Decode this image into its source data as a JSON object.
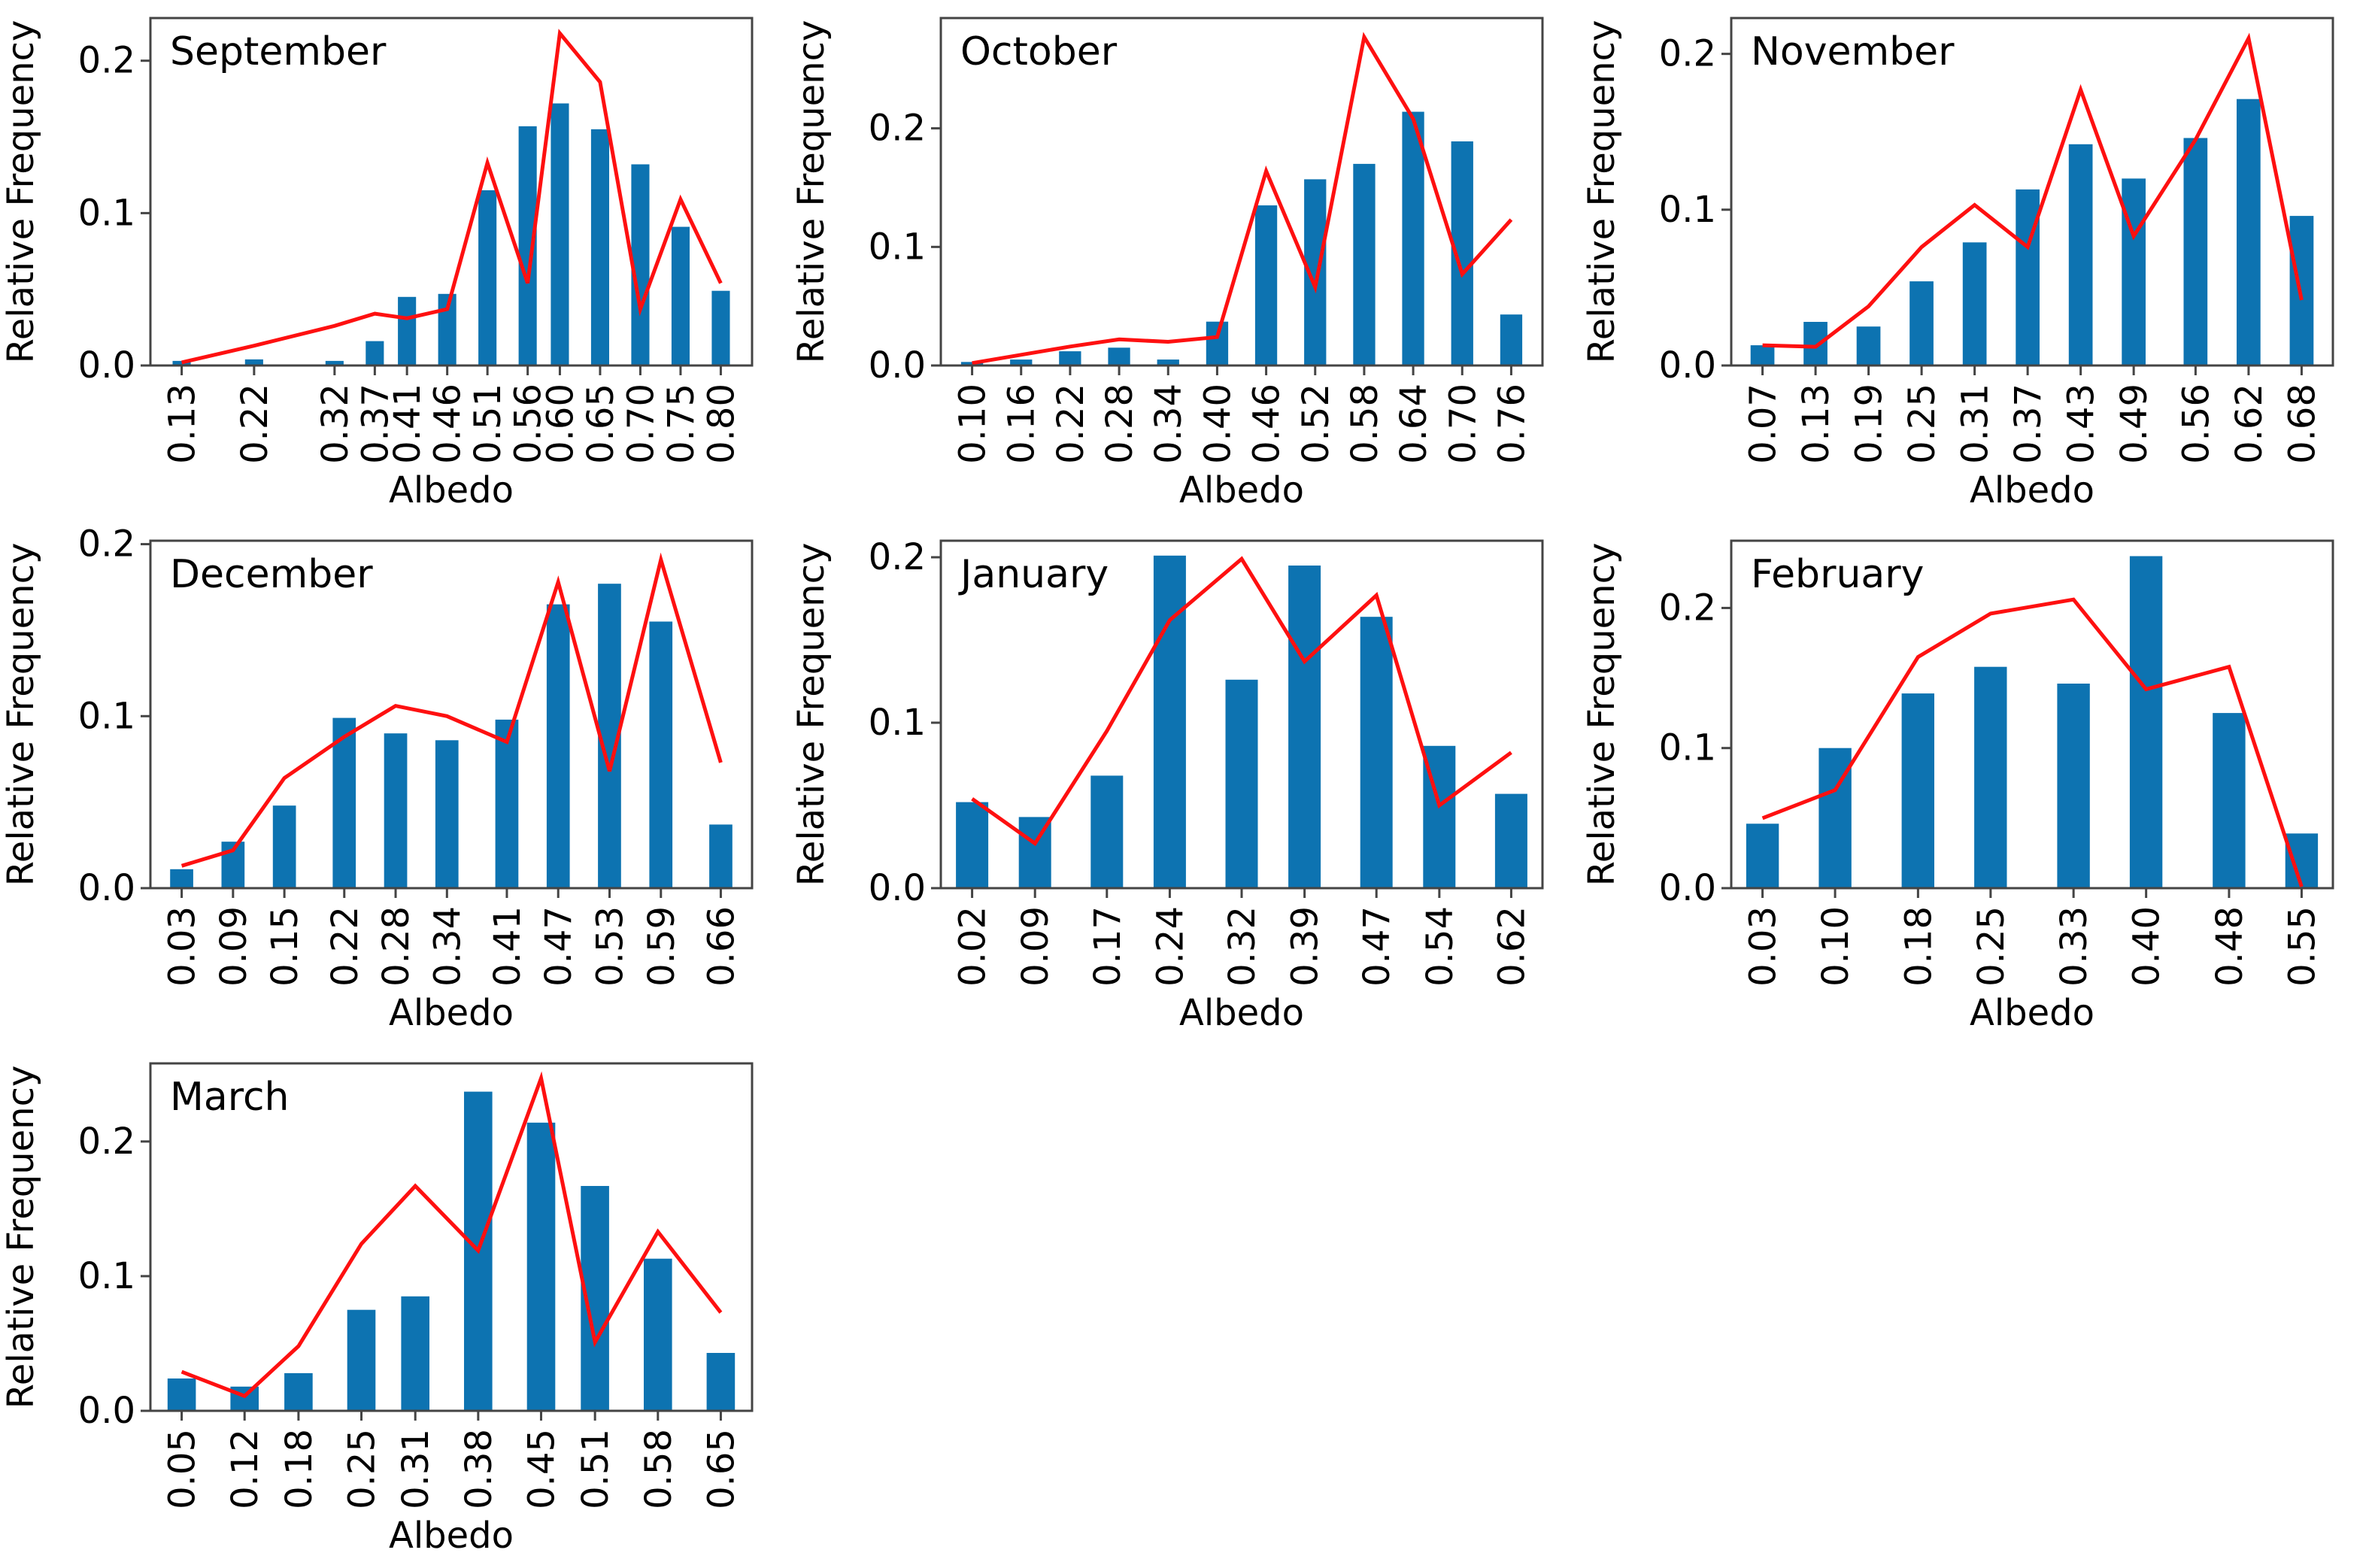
{
  "figure": {
    "ylabel": "Relative Frequency",
    "xlabel": "Albedo",
    "background_color": "#ffffff",
    "bar_color": "#0d73b1",
    "line_color": "#fe1010",
    "axis_color": "#444444",
    "text_color": "#000000",
    "ytick_labels": [
      "0.0",
      "0.1",
      "0.2"
    ]
  },
  "chart_data": [
    {
      "type": "bar",
      "title": "September",
      "xlabel": "Albedo",
      "ylabel": "Relative Frequency",
      "categories": [
        "0.13",
        "0.22",
        "0.32",
        "0.37",
        "0.41",
        "0.46",
        "0.51",
        "0.56",
        "0.60",
        "0.65",
        "0.70",
        "0.75",
        "0.80"
      ],
      "series": [
        {
          "name": "relative-frequency-histogram",
          "kind": "bar",
          "values": [
            0.003,
            0.004,
            0.003,
            0.016,
            0.045,
            0.047,
            0.115,
            0.157,
            0.172,
            0.155,
            0.132,
            0.091,
            0.049
          ]
        },
        {
          "name": "fitted-distribution-line",
          "kind": "line",
          "values": [
            0.002,
            0.013,
            0.026,
            0.034,
            0.031,
            0.037,
            0.133,
            0.054,
            0.218,
            0.186,
            0.037,
            0.109,
            0.054
          ]
        }
      ],
      "ylim": [
        0,
        0.228
      ],
      "yticks": [
        0.0,
        0.1,
        0.2
      ],
      "grid": false,
      "legend": "none"
    },
    {
      "type": "bar",
      "title": "October",
      "xlabel": "Albedo",
      "ylabel": "Relative Frequency",
      "categories": [
        "0.10",
        "0.16",
        "0.22",
        "0.28",
        "0.34",
        "0.40",
        "0.46",
        "0.52",
        "0.58",
        "0.64",
        "0.70",
        "0.76"
      ],
      "series": [
        {
          "name": "relative-frequency-histogram",
          "kind": "bar",
          "values": [
            0.003,
            0.005,
            0.012,
            0.015,
            0.005,
            0.037,
            0.135,
            0.157,
            0.17,
            0.214,
            0.189,
            0.043
          ]
        },
        {
          "name": "fitted-distribution-line",
          "kind": "line",
          "values": [
            0.002,
            0.009,
            0.016,
            0.022,
            0.02,
            0.024,
            0.164,
            0.066,
            0.277,
            0.208,
            0.077,
            0.123
          ]
        }
      ],
      "ylim": [
        0,
        0.293
      ],
      "yticks": [
        0.0,
        0.1,
        0.2
      ],
      "grid": false,
      "legend": "none"
    },
    {
      "type": "bar",
      "title": "November",
      "xlabel": "Albedo",
      "ylabel": "Relative Frequency",
      "categories": [
        "0.07",
        "0.13",
        "0.19",
        "0.25",
        "0.31",
        "0.37",
        "0.43",
        "0.49",
        "0.56",
        "0.62",
        "0.68"
      ],
      "series": [
        {
          "name": "relative-frequency-histogram",
          "kind": "bar",
          "values": [
            0.013,
            0.028,
            0.025,
            0.054,
            0.079,
            0.113,
            0.142,
            0.12,
            0.146,
            0.171,
            0.096
          ]
        },
        {
          "name": "fitted-distribution-line",
          "kind": "line",
          "values": [
            0.013,
            0.012,
            0.038,
            0.076,
            0.103,
            0.076,
            0.177,
            0.083,
            0.145,
            0.21,
            0.042
          ]
        }
      ],
      "ylim": [
        0,
        0.223
      ],
      "yticks": [
        0.0,
        0.1,
        0.2
      ],
      "grid": false,
      "legend": "none"
    },
    {
      "type": "bar",
      "title": "December",
      "xlabel": "Albedo",
      "ylabel": "Relative Frequency",
      "categories": [
        "0.03",
        "0.09",
        "0.15",
        "0.22",
        "0.28",
        "0.34",
        "0.41",
        "0.47",
        "0.53",
        "0.59",
        "0.66"
      ],
      "series": [
        {
          "name": "relative-frequency-histogram",
          "kind": "bar",
          "values": [
            0.011,
            0.027,
            0.048,
            0.099,
            0.09,
            0.086,
            0.098,
            0.165,
            0.177,
            0.155,
            0.037
          ]
        },
        {
          "name": "fitted-distribution-line",
          "kind": "line",
          "values": [
            0.013,
            0.022,
            0.064,
            0.088,
            0.106,
            0.1,
            0.085,
            0.178,
            0.068,
            0.191,
            0.073
          ]
        }
      ],
      "ylim": [
        0,
        0.202
      ],
      "yticks": [
        0.0,
        0.1,
        0.2
      ],
      "grid": false,
      "legend": "none"
    },
    {
      "type": "bar",
      "title": "January",
      "xlabel": "Albedo",
      "ylabel": "Relative Frequency",
      "categories": [
        "0.02",
        "0.09",
        "0.17",
        "0.24",
        "0.32",
        "0.39",
        "0.47",
        "0.54",
        "0.62"
      ],
      "series": [
        {
          "name": "relative-frequency-histogram",
          "kind": "bar",
          "values": [
            0.052,
            0.043,
            0.068,
            0.201,
            0.126,
            0.195,
            0.164,
            0.086,
            0.057
          ]
        },
        {
          "name": "fitted-distribution-line",
          "kind": "line",
          "values": [
            0.054,
            0.027,
            0.095,
            0.162,
            0.199,
            0.137,
            0.177,
            0.05,
            0.082
          ]
        }
      ],
      "ylim": [
        0,
        0.21
      ],
      "yticks": [
        0.0,
        0.1,
        0.2
      ],
      "grid": false,
      "legend": "none"
    },
    {
      "type": "bar",
      "title": "February",
      "xlabel": "Albedo",
      "ylabel": "Relative Frequency",
      "categories": [
        "0.03",
        "0.10",
        "0.18",
        "0.25",
        "0.33",
        "0.40",
        "0.48",
        "0.55"
      ],
      "series": [
        {
          "name": "relative-frequency-histogram",
          "kind": "bar",
          "values": [
            0.046,
            0.1,
            0.139,
            0.158,
            0.146,
            0.237,
            0.125,
            0.039
          ]
        },
        {
          "name": "fitted-distribution-line",
          "kind": "line",
          "values": [
            0.05,
            0.07,
            0.165,
            0.196,
            0.206,
            0.142,
            0.158,
            0.001
          ]
        }
      ],
      "ylim": [
        0,
        0.248
      ],
      "yticks": [
        0.0,
        0.1,
        0.2
      ],
      "grid": false,
      "legend": "none"
    },
    {
      "type": "bar",
      "title": "March",
      "xlabel": "Albedo",
      "ylabel": "Relative Frequency",
      "categories": [
        "0.05",
        "0.12",
        "0.18",
        "0.25",
        "0.31",
        "0.38",
        "0.45",
        "0.51",
        "0.58",
        "0.65"
      ],
      "series": [
        {
          "name": "relative-frequency-histogram",
          "kind": "bar",
          "values": [
            0.024,
            0.018,
            0.028,
            0.075,
            0.085,
            0.237,
            0.214,
            0.167,
            0.113,
            0.043
          ]
        },
        {
          "name": "fitted-distribution-line",
          "kind": "line",
          "values": [
            0.029,
            0.011,
            0.048,
            0.124,
            0.167,
            0.119,
            0.247,
            0.051,
            0.133,
            0.073
          ]
        }
      ],
      "ylim": [
        0,
        0.258
      ],
      "yticks": [
        0.0,
        0.1,
        0.2
      ],
      "grid": false,
      "legend": "none"
    }
  ]
}
